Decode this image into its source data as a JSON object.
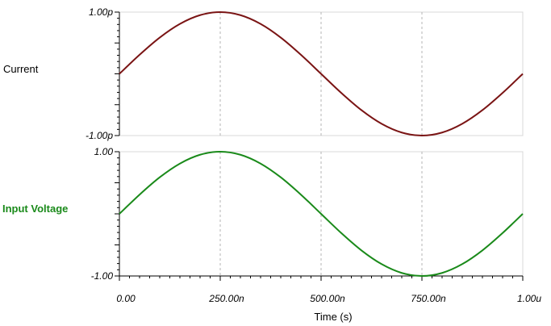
{
  "chart_data": [
    {
      "type": "line",
      "ylabel": "Current",
      "ylim": [
        -1e-12,
        1e-12
      ],
      "ytick_labels": [
        "1.00p",
        "-1.00p"
      ],
      "xlim": [
        0,
        1e-06
      ],
      "grid": "vertical dashed",
      "series": [
        {
          "name": "Current",
          "color": "#7a1414",
          "x": [
            0,
            5e-08,
            1e-07,
            1.5e-07,
            2e-07,
            2.5e-07,
            3e-07,
            3.5e-07,
            4e-07,
            4.5e-07,
            5e-07,
            5.5e-07,
            6e-07,
            6.5e-07,
            7e-07,
            7.5e-07,
            8e-07,
            8.5e-07,
            9e-07,
            9.5e-07,
            1e-06
          ],
          "y": [
            0,
            3.09e-13,
            5.88e-13,
            8.09e-13,
            9.51e-13,
            1e-12,
            9.51e-13,
            8.09e-13,
            5.88e-13,
            3.09e-13,
            0,
            -3.09e-13,
            -5.88e-13,
            -8.09e-13,
            -9.51e-13,
            -1e-12,
            -9.51e-13,
            -8.09e-13,
            -5.88e-13,
            -3.09e-13,
            0
          ]
        }
      ]
    },
    {
      "type": "line",
      "ylabel": "Input Voltage",
      "ylim": [
        -1,
        1
      ],
      "ytick_labels": [
        "1.00",
        "-1.00"
      ],
      "xlim": [
        0,
        1e-06
      ],
      "xlabel": "Time (s)",
      "xtick_labels": [
        "0.00",
        "250.00n",
        "500.00n",
        "750.00n",
        "1.00u"
      ],
      "xticks": [
        0,
        2.5e-07,
        5e-07,
        7.5e-07,
        1e-06
      ],
      "grid": "vertical dashed",
      "series": [
        {
          "name": "Input Voltage",
          "color": "#1a8a1a",
          "x": [
            0,
            5e-08,
            1e-07,
            1.5e-07,
            2e-07,
            2.5e-07,
            3e-07,
            3.5e-07,
            4e-07,
            4.5e-07,
            5e-07,
            5.5e-07,
            6e-07,
            6.5e-07,
            7e-07,
            7.5e-07,
            8e-07,
            8.5e-07,
            9e-07,
            9.5e-07,
            1e-06
          ],
          "y": [
            0,
            0.309,
            0.588,
            0.809,
            0.951,
            1,
            0.951,
            0.809,
            0.588,
            0.309,
            0,
            -0.309,
            -0.588,
            -0.809,
            -0.951,
            -1,
            -0.951,
            -0.809,
            -0.588,
            -0.309,
            0
          ]
        }
      ]
    }
  ]
}
